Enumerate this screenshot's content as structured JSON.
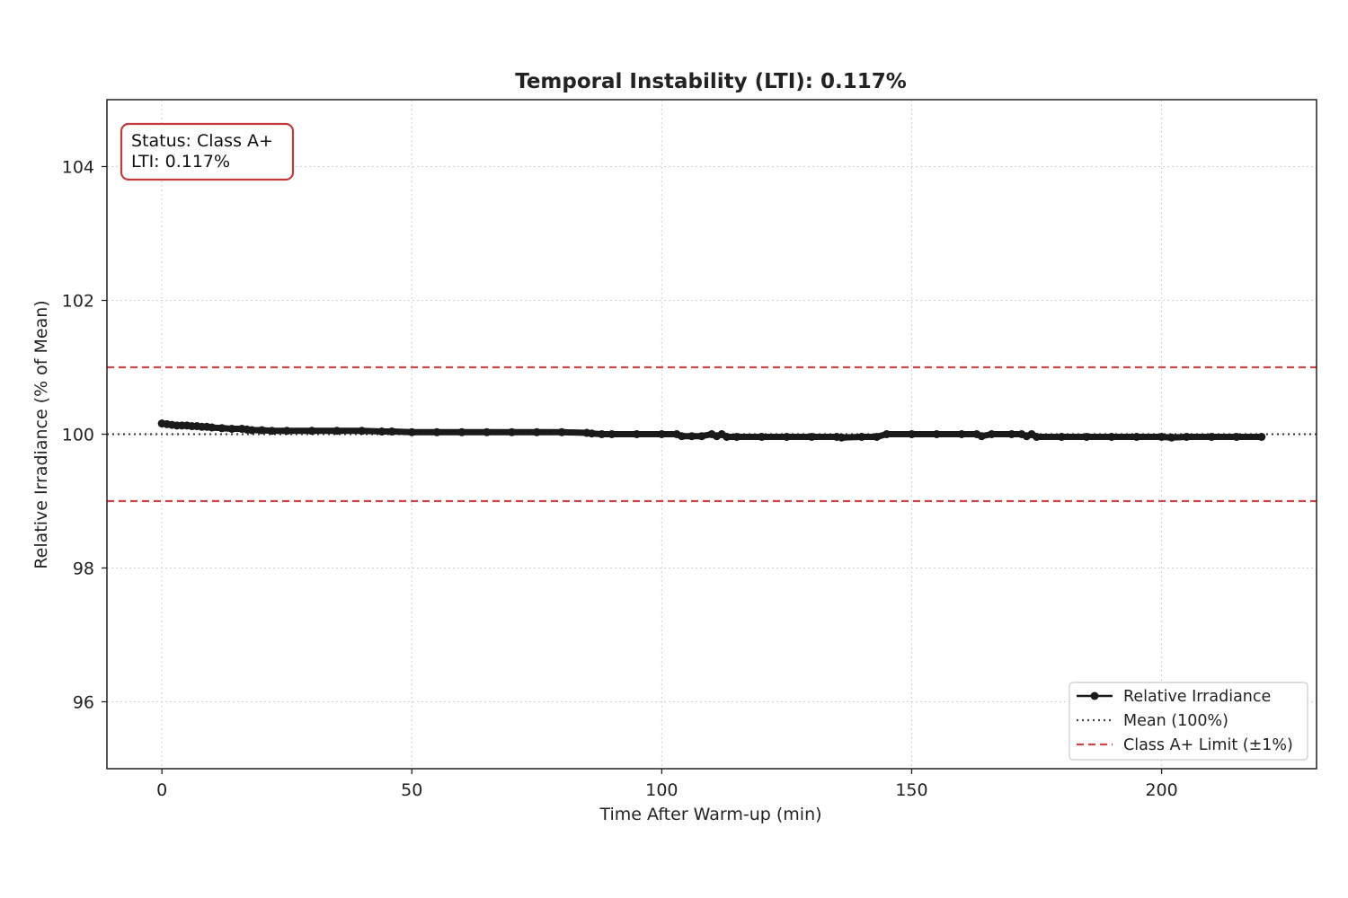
{
  "chart_data": {
    "type": "line",
    "title": "Temporal Instability (LTI): 0.117%",
    "xlabel": "Time After Warm-up (min)",
    "ylabel": "Relative Irradiance (% of Mean)",
    "xlim": [
      -11,
      231
    ],
    "ylim": [
      95,
      105
    ],
    "x_ticks": [
      0,
      50,
      100,
      150,
      200
    ],
    "y_ticks": [
      96,
      98,
      100,
      102,
      104
    ],
    "grid": true,
    "legend_position": "lower-right",
    "status_box": {
      "line1": "Status: Class A+",
      "line2": "LTI: 0.117%"
    },
    "series": [
      {
        "name": "Relative Irradiance",
        "color": "#1a1a1a",
        "style": "solid-with-markers",
        "x": [
          0,
          1,
          2,
          3,
          4,
          5,
          6,
          7,
          8,
          9,
          10,
          12,
          14,
          16,
          17,
          18,
          20,
          22,
          25,
          30,
          35,
          40,
          44,
          46,
          50,
          55,
          60,
          65,
          70,
          75,
          80,
          85,
          86,
          88,
          90,
          95,
          100,
          103,
          104,
          106,
          108,
          110,
          111,
          112,
          113,
          115,
          120,
          125,
          130,
          135,
          136,
          140,
          143,
          145,
          150,
          155,
          160,
          163,
          164,
          166,
          170,
          172,
          173,
          174,
          175,
          180,
          185,
          190,
          195,
          200,
          202,
          205,
          210,
          215,
          220
        ],
        "y": [
          100.16,
          100.15,
          100.14,
          100.13,
          100.13,
          100.13,
          100.12,
          100.12,
          100.11,
          100.11,
          100.1,
          100.09,
          100.08,
          100.08,
          100.07,
          100.06,
          100.06,
          100.05,
          100.05,
          100.05,
          100.05,
          100.05,
          100.04,
          100.04,
          100.03,
          100.03,
          100.03,
          100.03,
          100.03,
          100.03,
          100.03,
          100.02,
          100.01,
          100.0,
          100.0,
          100.0,
          100.0,
          100.0,
          99.97,
          99.97,
          99.97,
          100.0,
          99.97,
          100.0,
          99.96,
          99.96,
          99.96,
          99.96,
          99.96,
          99.96,
          99.95,
          99.96,
          99.96,
          100.0,
          100.0,
          100.0,
          100.0,
          100.0,
          99.97,
          100.0,
          100.0,
          100.0,
          99.97,
          100.0,
          99.96,
          99.96,
          99.96,
          99.96,
          99.96,
          99.96,
          99.95,
          99.96,
          99.96,
          99.96,
          99.96
        ]
      },
      {
        "name": "Mean (100%)",
        "color": "#444444",
        "style": "dotted",
        "y_constant": 100
      },
      {
        "name": "Class A+ Limit (±1%)",
        "color": "#d04545",
        "style": "dashed",
        "y_constant": [
          101,
          99
        ]
      }
    ]
  }
}
